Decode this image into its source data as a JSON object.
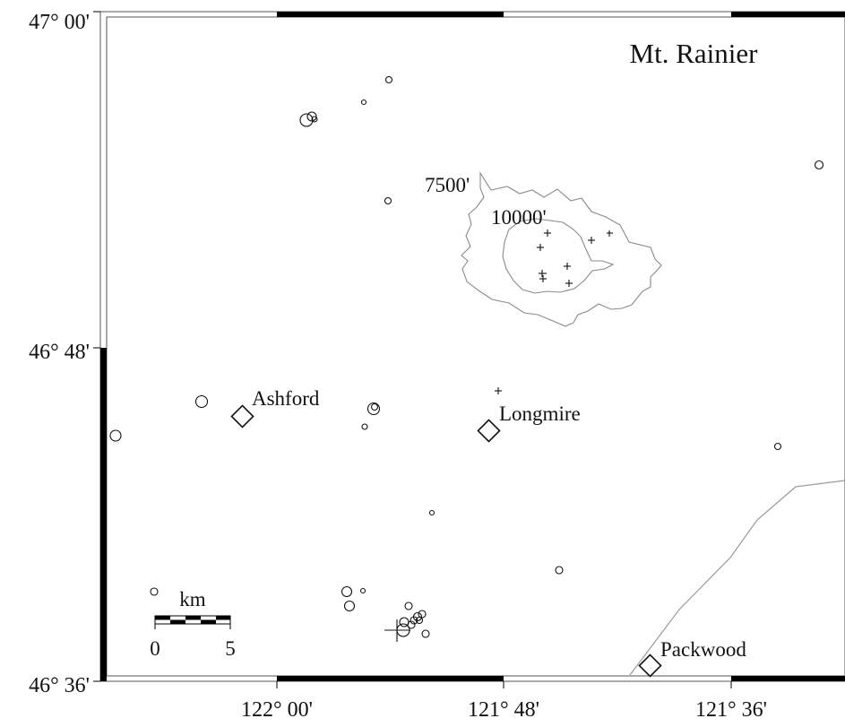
{
  "title": "Mt. Rainier",
  "axes": {
    "lon_ticks": [
      "122° 00'",
      "121° 48'",
      "121° 36'"
    ],
    "lat_ticks": [
      "47° 00'",
      "46° 48'",
      "46° 36'"
    ]
  },
  "contours": {
    "outer_label": "7500'",
    "inner_label": "10000'"
  },
  "towns": [
    {
      "name": "Ashford"
    },
    {
      "name": "Longmire"
    },
    {
      "name": "Packwood"
    }
  ],
  "scale_bar": {
    "unit": "km",
    "tick_labels": [
      "0",
      "5"
    ]
  },
  "colors": {
    "ink": "#111111",
    "contour": "#8a8a8a",
    "road": "#9a9a9a"
  }
}
